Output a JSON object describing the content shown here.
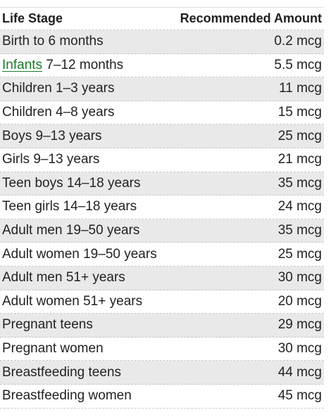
{
  "table": {
    "header": {
      "life_stage": "Life Stage",
      "amount": "Recommended Amount"
    },
    "rows": [
      {
        "stage": "Birth to 6 months",
        "amount": "0.2 mcg"
      },
      {
        "stage_link": "Infants",
        "stage_rest": "7–12 months",
        "amount": "5.5 mcg"
      },
      {
        "stage": "Children 1–3 years",
        "amount": "11 mcg"
      },
      {
        "stage": "Children 4–8 years",
        "amount": "15 mcg"
      },
      {
        "stage": "Boys 9–13 years",
        "amount": "25 mcg"
      },
      {
        "stage": "Girls 9–13 years",
        "amount": "21 mcg"
      },
      {
        "stage": "Teen boys 14–18 years",
        "amount": "35 mcg"
      },
      {
        "stage": "Teen girls 14–18 years",
        "amount": "24 mcg"
      },
      {
        "stage": "Adult men 19–50 years",
        "amount": "35 mcg"
      },
      {
        "stage": "Adult women 19–50 years",
        "amount": "25 mcg"
      },
      {
        "stage": "Adult men 51+ years",
        "amount": "30 mcg"
      },
      {
        "stage": "Adult women 51+ years",
        "amount": "20 mcg"
      },
      {
        "stage": "Pregnant teens",
        "amount": "29 mcg"
      },
      {
        "stage": "Pregnant women",
        "amount": "30 mcg"
      },
      {
        "stage": "Breastfeeding teens",
        "amount": "44 mcg"
      },
      {
        "stage": "Breastfeeding women",
        "amount": "45 mcg"
      }
    ]
  }
}
